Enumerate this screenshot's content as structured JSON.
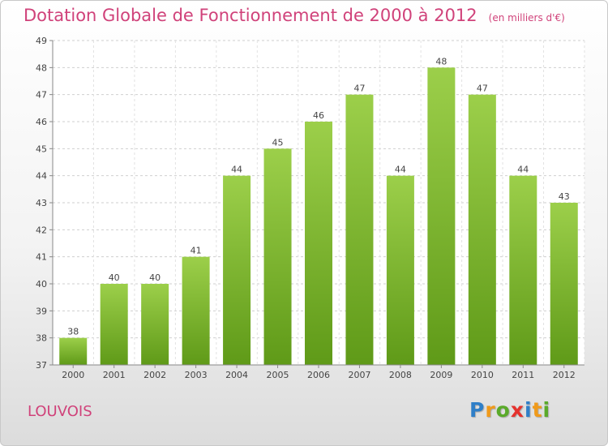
{
  "title": "Dotation Globale de Fonctionnement de 2000 à 2012",
  "unit_note": "(en milliers d'€)",
  "commune": "LOUVOIS",
  "logo": {
    "letters": [
      {
        "ch": "P",
        "color": "#2f7fc8"
      },
      {
        "ch": "r",
        "color": "#f09a1a"
      },
      {
        "ch": "o",
        "color": "#5aaa2a"
      },
      {
        "ch": "x",
        "color": "#e5322d"
      },
      {
        "ch": "i",
        "color": "#2f7fc8"
      },
      {
        "ch": "t",
        "color": "#f09a1a"
      },
      {
        "ch": "i",
        "color": "#5aaa2a"
      }
    ]
  },
  "chart_data": {
    "type": "bar",
    "categories": [
      "2000",
      "2001",
      "2002",
      "2003",
      "2004",
      "2005",
      "2006",
      "2007",
      "2008",
      "2009",
      "2010",
      "2011",
      "2012"
    ],
    "values": [
      38,
      40,
      40,
      41,
      44,
      45,
      46,
      47,
      44,
      48,
      47,
      44,
      43
    ],
    "ylim": [
      37,
      49
    ],
    "yticks": [
      37,
      38,
      39,
      40,
      41,
      42,
      43,
      44,
      45,
      46,
      47,
      48,
      49
    ],
    "grid": true,
    "bar_color_top": "#9ccf4a",
    "bar_color_bottom": "#5f9a18"
  }
}
